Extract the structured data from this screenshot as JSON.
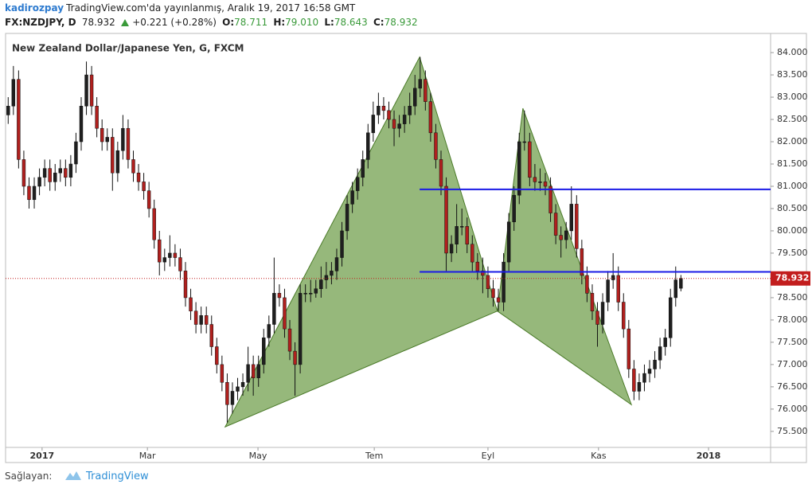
{
  "header": {
    "author": "kadirozpay",
    "published": "TradingView.com'da yayınlanmış, Aralık 19, 2017 16:58 GMT",
    "symbol": "FX:NZDJPY, D",
    "price": "78.932",
    "change": "+0.221 (+0.28%)",
    "o_label": "O:",
    "o_value": "78.711",
    "h_label": "H:",
    "h_value": "79.010",
    "l_label": "L:",
    "l_value": "78.643",
    "c_label": "C:",
    "c_value": "78.932"
  },
  "footer": {
    "provided_by": "Sağlayan:",
    "brand": "TradingView"
  },
  "chart_data": {
    "type": "candlestick",
    "title": "New Zealand Dollar/Japanese Yen, G, FXCM",
    "up_color": "#1f1f1f",
    "down_color": "#b0201e",
    "xlim": [
      -0.5,
      146.2
    ],
    "ylim": [
      75.14,
      84.43
    ],
    "xticks": [
      {
        "value": 6.5,
        "label": "2017"
      },
      {
        "value": 26.7,
        "label": "Mar"
      },
      {
        "value": 47.9,
        "label": "May"
      },
      {
        "value": 70.2,
        "label": "Tem"
      },
      {
        "value": 92.0,
        "label": "Eyl"
      },
      {
        "value": 113.2,
        "label": "Kas"
      },
      {
        "value": 134.3,
        "label": "2018"
      }
    ],
    "yticks": [
      {
        "value": 75.5,
        "label": "75.500"
      },
      {
        "value": 76,
        "label": "76.000"
      },
      {
        "value": 76.5,
        "label": "76.500"
      },
      {
        "value": 77,
        "label": "77.000"
      },
      {
        "value": 77.5,
        "label": "77.500"
      },
      {
        "value": 78,
        "label": "78.000"
      },
      {
        "value": 78.5,
        "label": "78.500"
      },
      {
        "value": 79,
        "label": "79.000"
      },
      {
        "value": 79.5,
        "label": "79.500"
      },
      {
        "value": 80,
        "label": "80.000"
      },
      {
        "value": 80.5,
        "label": "80.500"
      },
      {
        "value": 81,
        "label": "81.000"
      },
      {
        "value": 81.5,
        "label": "81.500"
      },
      {
        "value": 82,
        "label": "82.000"
      },
      {
        "value": 82.5,
        "label": "82.500"
      },
      {
        "value": 83,
        "label": "83.000"
      },
      {
        "value": 83.5,
        "label": "83.500"
      },
      {
        "value": 84,
        "label": "84.000"
      }
    ],
    "last_price": 78.932,
    "last_price_color": "#c21d1d",
    "pattern": {
      "color": "#6a9a43",
      "points": [
        [
          41.6,
          75.6
        ],
        [
          78.9,
          83.9
        ],
        [
          93.8,
          78.2
        ],
        [
          98.7,
          82.75
        ],
        [
          119.5,
          76.1
        ]
      ]
    },
    "levels": [
      {
        "value": 80.93,
        "start": 78.9,
        "color": "#1a1ae6"
      },
      {
        "value": 79.08,
        "start": 78.9,
        "color": "#1a1ae6"
      }
    ],
    "ohlc": [
      [
        82.6,
        83.0,
        82.4,
        82.8
      ],
      [
        82.8,
        83.7,
        82.6,
        83.4
      ],
      [
        83.4,
        83.6,
        81.4,
        81.6
      ],
      [
        81.6,
        81.8,
        80.8,
        81.0
      ],
      [
        81.0,
        81.2,
        80.5,
        80.7
      ],
      [
        80.7,
        81.2,
        80.5,
        81.0
      ],
      [
        81.0,
        81.4,
        80.8,
        81.2
      ],
      [
        81.2,
        81.6,
        81.0,
        81.4
      ],
      [
        81.4,
        81.6,
        80.9,
        81.1
      ],
      [
        81.1,
        81.5,
        80.9,
        81.3
      ],
      [
        81.3,
        81.6,
        81.1,
        81.4
      ],
      [
        81.4,
        81.6,
        81.0,
        81.2
      ],
      [
        81.2,
        81.7,
        81.0,
        81.5
      ],
      [
        81.5,
        82.2,
        81.3,
        82.0
      ],
      [
        82.0,
        83.0,
        81.8,
        82.8
      ],
      [
        82.8,
        83.8,
        82.6,
        83.5
      ],
      [
        83.5,
        83.7,
        82.6,
        82.8
      ],
      [
        82.8,
        83.0,
        82.1,
        82.3
      ],
      [
        82.3,
        82.5,
        81.8,
        82.0
      ],
      [
        82.0,
        82.3,
        81.8,
        82.1
      ],
      [
        82.1,
        82.3,
        80.9,
        81.3
      ],
      [
        81.3,
        82.0,
        81.1,
        81.8
      ],
      [
        81.8,
        82.6,
        81.6,
        82.3
      ],
      [
        82.3,
        82.5,
        81.4,
        81.6
      ],
      [
        81.6,
        81.8,
        81.1,
        81.3
      ],
      [
        81.3,
        81.5,
        80.9,
        81.1
      ],
      [
        81.1,
        81.3,
        80.7,
        80.9
      ],
      [
        80.9,
        81.1,
        80.3,
        80.5
      ],
      [
        80.5,
        80.7,
        79.6,
        79.8
      ],
      [
        79.8,
        80.0,
        79.0,
        79.3
      ],
      [
        79.3,
        79.6,
        79.1,
        79.4
      ],
      [
        79.4,
        79.9,
        79.2,
        79.5
      ],
      [
        79.5,
        79.7,
        79.2,
        79.4
      ],
      [
        79.4,
        79.6,
        78.9,
        79.1
      ],
      [
        79.1,
        79.3,
        78.3,
        78.5
      ],
      [
        78.5,
        78.7,
        78.0,
        78.2
      ],
      [
        78.2,
        78.4,
        77.7,
        77.9
      ],
      [
        77.9,
        78.3,
        77.7,
        78.1
      ],
      [
        78.1,
        78.3,
        77.7,
        77.9
      ],
      [
        77.9,
        78.1,
        77.2,
        77.4
      ],
      [
        77.4,
        77.6,
        76.8,
        77.0
      ],
      [
        77.0,
        77.2,
        76.4,
        76.6
      ],
      [
        76.6,
        76.8,
        75.7,
        76.1
      ],
      [
        76.1,
        76.6,
        75.9,
        76.4
      ],
      [
        76.4,
        76.7,
        76.2,
        76.5
      ],
      [
        76.5,
        76.8,
        76.3,
        76.6
      ],
      [
        76.6,
        77.4,
        76.4,
        77.0
      ],
      [
        77.0,
        77.2,
        76.3,
        76.7
      ],
      [
        76.7,
        77.2,
        76.5,
        77.0
      ],
      [
        77.0,
        77.8,
        76.8,
        77.6
      ],
      [
        77.6,
        78.1,
        77.4,
        77.9
      ],
      [
        77.9,
        79.4,
        77.7,
        78.6
      ],
      [
        78.6,
        78.8,
        78.3,
        78.5
      ],
      [
        78.5,
        78.7,
        77.6,
        77.8
      ],
      [
        77.8,
        78.0,
        77.1,
        77.3
      ],
      [
        77.3,
        77.5,
        76.3,
        77.0
      ],
      [
        77.0,
        78.8,
        76.8,
        78.6
      ],
      [
        78.6,
        78.8,
        78.4,
        78.6
      ],
      [
        78.6,
        78.9,
        78.4,
        78.6
      ],
      [
        78.6,
        78.9,
        78.5,
        78.7
      ],
      [
        78.7,
        79.2,
        78.5,
        78.9
      ],
      [
        78.9,
        79.3,
        78.7,
        79.0
      ],
      [
        79.0,
        79.3,
        78.8,
        79.1
      ],
      [
        79.1,
        79.6,
        78.9,
        79.4
      ],
      [
        79.4,
        80.2,
        79.2,
        80.0
      ],
      [
        80.0,
        80.8,
        79.8,
        80.6
      ],
      [
        80.6,
        81.1,
        80.4,
        80.9
      ],
      [
        80.9,
        81.4,
        80.7,
        81.2
      ],
      [
        81.2,
        81.8,
        81.0,
        81.6
      ],
      [
        81.6,
        82.4,
        81.4,
        82.2
      ],
      [
        82.2,
        82.9,
        82.0,
        82.6
      ],
      [
        82.6,
        83.1,
        82.4,
        82.8
      ],
      [
        82.8,
        83.0,
        82.5,
        82.7
      ],
      [
        82.7,
        82.9,
        82.3,
        82.5
      ],
      [
        82.5,
        82.7,
        81.9,
        82.3
      ],
      [
        82.3,
        82.6,
        82.1,
        82.4
      ],
      [
        82.4,
        82.8,
        82.2,
        82.6
      ],
      [
        82.6,
        83.1,
        82.4,
        82.8
      ],
      [
        82.8,
        83.5,
        82.6,
        83.2
      ],
      [
        83.2,
        83.9,
        83.0,
        83.4
      ],
      [
        83.4,
        83.6,
        82.7,
        82.9
      ],
      [
        82.9,
        83.1,
        82.0,
        82.2
      ],
      [
        82.2,
        82.4,
        81.4,
        81.6
      ],
      [
        81.6,
        81.8,
        80.8,
        81.0
      ],
      [
        81.0,
        81.2,
        79.1,
        79.5
      ],
      [
        79.5,
        79.9,
        79.3,
        79.7
      ],
      [
        79.7,
        80.6,
        79.5,
        80.1
      ],
      [
        80.1,
        80.5,
        79.9,
        80.1
      ],
      [
        80.1,
        80.3,
        79.5,
        79.7
      ],
      [
        79.7,
        79.9,
        79.1,
        79.3
      ],
      [
        79.3,
        79.5,
        78.9,
        79.1
      ],
      [
        79.1,
        79.4,
        78.6,
        79.0
      ],
      [
        79.0,
        79.2,
        78.5,
        78.7
      ],
      [
        78.7,
        78.9,
        78.3,
        78.5
      ],
      [
        78.5,
        78.7,
        78.2,
        78.4
      ],
      [
        78.4,
        79.5,
        78.2,
        79.3
      ],
      [
        79.3,
        80.4,
        79.1,
        80.2
      ],
      [
        80.2,
        81.0,
        80.0,
        80.8
      ],
      [
        80.8,
        82.2,
        80.6,
        82.0
      ],
      [
        82.0,
        82.7,
        81.8,
        82.0
      ],
      [
        82.0,
        82.2,
        81.0,
        81.2
      ],
      [
        81.2,
        81.5,
        80.9,
        81.1
      ],
      [
        81.1,
        81.4,
        80.9,
        81.1
      ],
      [
        81.1,
        81.3,
        80.8,
        81.0
      ],
      [
        81.0,
        81.2,
        80.2,
        80.4
      ],
      [
        80.4,
        80.6,
        79.7,
        79.9
      ],
      [
        79.9,
        80.1,
        79.4,
        79.8
      ],
      [
        79.8,
        80.2,
        79.6,
        80.0
      ],
      [
        80.0,
        81.0,
        79.8,
        80.6
      ],
      [
        80.6,
        80.8,
        79.4,
        79.6
      ],
      [
        79.6,
        79.8,
        78.8,
        79.0
      ],
      [
        79.0,
        79.2,
        78.4,
        78.6
      ],
      [
        78.6,
        78.8,
        78.0,
        78.2
      ],
      [
        78.2,
        78.4,
        77.4,
        77.9
      ],
      [
        77.9,
        78.6,
        77.7,
        78.4
      ],
      [
        78.4,
        79.1,
        78.2,
        78.9
      ],
      [
        78.9,
        79.5,
        78.7,
        79.0
      ],
      [
        79.0,
        79.2,
        78.2,
        78.4
      ],
      [
        78.4,
        78.6,
        77.6,
        77.8
      ],
      [
        77.8,
        78.0,
        76.7,
        76.9
      ],
      [
        76.9,
        77.1,
        76.2,
        76.4
      ],
      [
        76.4,
        76.8,
        76.2,
        76.6
      ],
      [
        76.6,
        77.0,
        76.4,
        76.8
      ],
      [
        76.8,
        77.1,
        76.6,
        76.9
      ],
      [
        76.9,
        77.3,
        76.7,
        77.1
      ],
      [
        77.1,
        77.6,
        76.9,
        77.4
      ],
      [
        77.4,
        77.8,
        77.2,
        77.6
      ],
      [
        77.6,
        78.7,
        77.4,
        78.5
      ],
      [
        78.5,
        79.2,
        78.3,
        78.9
      ],
      [
        78.711,
        79.01,
        78.643,
        78.932
      ]
    ]
  }
}
